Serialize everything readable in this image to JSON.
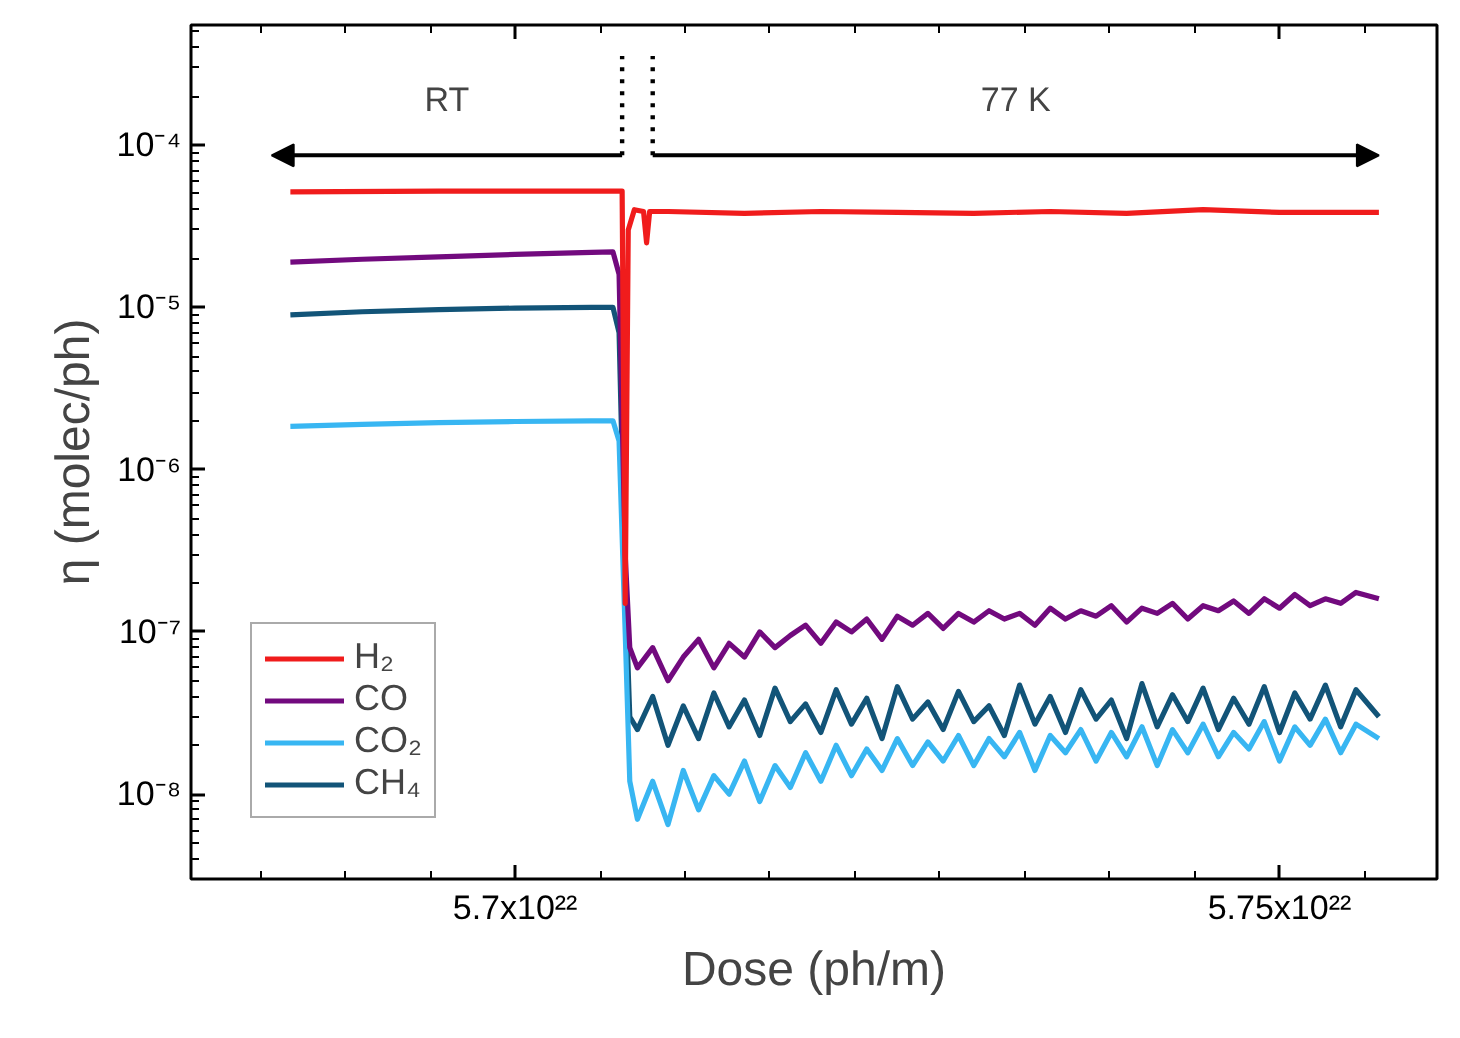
{
  "chart_data": {
    "type": "line",
    "xlabel": "Dose (ph/m)",
    "ylabel": "η (molec/ph)",
    "log": "y",
    "grid": false,
    "legend": "bottom left",
    "marker": "none",
    "line_style": "solid",
    "xlim": [
      5.6788e+22,
      5.7603e+22
    ],
    "ylim": [
      3e-09,
      0.00055
    ],
    "xticks": [
      {
        "value": 5.7e+22,
        "label": "5.7x10²²"
      },
      {
        "value": 5.75e+22,
        "label": "5.75x10²²"
      }
    ],
    "yticks": [
      {
        "value": 1e-08,
        "label": "10⁻⁸"
      },
      {
        "value": 1e-07,
        "label": "10⁻⁷"
      },
      {
        "value": 1e-06,
        "label": "10⁻⁶"
      },
      {
        "value": 1e-05,
        "label": "10⁻⁵"
      },
      {
        "value": 0.0001,
        "label": "10⁻⁴"
      }
    ],
    "x": [
      5.6853e+22,
      5.69e+22,
      5.695e+22,
      5.7e+22,
      5.705e+22,
      5.7064e+22,
      5.7068e+22,
      5.7072e+22,
      5.7075e+22,
      5.708e+22,
      5.709e+22,
      5.71e+22,
      5.711e+22,
      5.712e+22,
      5.713e+22,
      5.714e+22,
      5.715e+22,
      5.716e+22,
      5.717e+22,
      5.718e+22,
      5.719e+22,
      5.72e+22,
      5.721e+22,
      5.722e+22,
      5.723e+22,
      5.724e+22,
      5.725e+22,
      5.726e+22,
      5.727e+22,
      5.728e+22,
      5.729e+22,
      5.73e+22,
      5.731e+22,
      5.732e+22,
      5.733e+22,
      5.734e+22,
      5.735e+22,
      5.736e+22,
      5.737e+22,
      5.738e+22,
      5.739e+22,
      5.74e+22,
      5.741e+22,
      5.742e+22,
      5.743e+22,
      5.744e+22,
      5.745e+22,
      5.746e+22,
      5.747e+22,
      5.748e+22,
      5.749e+22,
      5.75e+22,
      5.751e+22,
      5.752e+22,
      5.753e+22,
      5.754e+22,
      5.755e+22,
      5.7565e+22
    ],
    "series": [
      {
        "name": "H₂",
        "color": "#f01c1c",
        "x": [
          5.6853e+22,
          5.695e+22,
          5.705e+22,
          5.707e+22,
          5.7072e+22,
          5.7074e+22,
          5.7078e+22,
          5.7084e+22,
          5.7086e+22,
          5.7088e+22,
          5.71e+22,
          5.715e+22,
          5.72e+22,
          5.725e+22,
          5.73e+22,
          5.735e+22,
          5.74e+22,
          5.745e+22,
          5.75e+22,
          5.755e+22,
          5.7565e+22
        ],
        "values": [
          5.15e-05,
          5.2e-05,
          5.2e-05,
          5.2e-05,
          1.5e-07,
          3e-05,
          4e-05,
          3.9e-05,
          2.5e-05,
          3.9e-05,
          3.9e-05,
          3.8e-05,
          3.9e-05,
          3.85e-05,
          3.8e-05,
          3.9e-05,
          3.8e-05,
          4e-05,
          3.85e-05,
          3.85e-05,
          3.85e-05
        ]
      },
      {
        "name": "CO",
        "color": "#720a7e",
        "values": [
          1.9e-05,
          1.98e-05,
          2.05e-05,
          2.12e-05,
          2.18e-05,
          2.2e-05,
          1.6e-05,
          3e-07,
          8e-08,
          6e-08,
          8e-08,
          5e-08,
          7e-08,
          9e-08,
          6e-08,
          8.5e-08,
          7e-08,
          1e-07,
          8e-08,
          9.5e-08,
          1.1e-07,
          8.5e-08,
          1.15e-07,
          1e-07,
          1.2e-07,
          9e-08,
          1.25e-07,
          1.1e-07,
          1.3e-07,
          1.05e-07,
          1.3e-07,
          1.15e-07,
          1.35e-07,
          1.2e-07,
          1.3e-07,
          1.1e-07,
          1.4e-07,
          1.2e-07,
          1.35e-07,
          1.25e-07,
          1.45e-07,
          1.15e-07,
          1.4e-07,
          1.3e-07,
          1.5e-07,
          1.2e-07,
          1.45e-07,
          1.35e-07,
          1.55e-07,
          1.3e-07,
          1.6e-07,
          1.4e-07,
          1.7e-07,
          1.45e-07,
          1.6e-07,
          1.5e-07,
          1.75e-07,
          1.6e-07
        ]
      },
      {
        "name": "CO₂",
        "color": "#38b6f2",
        "values": [
          1.85e-06,
          1.9e-06,
          1.95e-06,
          1.98e-06,
          2e-06,
          2e-06,
          1.5e-06,
          1e-07,
          1.2e-08,
          7e-09,
          1.2e-08,
          6.5e-09,
          1.4e-08,
          8e-09,
          1.3e-08,
          1e-08,
          1.6e-08,
          9e-09,
          1.5e-08,
          1.1e-08,
          1.8e-08,
          1.2e-08,
          2e-08,
          1.3e-08,
          1.9e-08,
          1.4e-08,
          2.2e-08,
          1.5e-08,
          2.1e-08,
          1.6e-08,
          2.3e-08,
          1.5e-08,
          2.2e-08,
          1.7e-08,
          2.4e-08,
          1.4e-08,
          2.3e-08,
          1.8e-08,
          2.5e-08,
          1.6e-08,
          2.4e-08,
          1.7e-08,
          2.6e-08,
          1.5e-08,
          2.5e-08,
          1.8e-08,
          2.7e-08,
          1.7e-08,
          2.4e-08,
          1.9e-08,
          2.8e-08,
          1.6e-08,
          2.6e-08,
          2e-08,
          2.9e-08,
          1.8e-08,
          2.7e-08,
          2.2e-08
        ]
      },
      {
        "name": "CH₄",
        "color": "#125478",
        "values": [
          9e-06,
          9.4e-06,
          9.7e-06,
          9.9e-06,
          1e-05,
          1e-05,
          7e-06,
          2e-07,
          3e-08,
          2.5e-08,
          4e-08,
          2e-08,
          3.5e-08,
          2.2e-08,
          4.2e-08,
          2.6e-08,
          3.8e-08,
          2.3e-08,
          4.5e-08,
          2.8e-08,
          3.6e-08,
          2.4e-08,
          4.4e-08,
          2.7e-08,
          3.9e-08,
          2.2e-08,
          4.6e-08,
          2.9e-08,
          3.7e-08,
          2.5e-08,
          4.3e-08,
          2.8e-08,
          3.5e-08,
          2.3e-08,
          4.7e-08,
          2.7e-08,
          4e-08,
          2.4e-08,
          4.4e-08,
          2.9e-08,
          3.8e-08,
          2.2e-08,
          4.8e-08,
          2.6e-08,
          4.1e-08,
          2.8e-08,
          4.5e-08,
          2.5e-08,
          3.9e-08,
          2.7e-08,
          4.6e-08,
          2.4e-08,
          4.2e-08,
          2.9e-08,
          4.7e-08,
          2.6e-08,
          4.4e-08,
          3e-08
        ]
      }
    ],
    "annotations": [
      "RT",
      "77 K"
    ],
    "ref_lines": [
      {
        "axis": "x",
        "value": 5.707e+22,
        "label": null,
        "color": "#000000",
        "line_style": "dotted"
      },
      {
        "axis": "x",
        "value": 5.709e+22,
        "label": null,
        "color": "#000000",
        "line_style": "dotted"
      }
    ]
  }
}
